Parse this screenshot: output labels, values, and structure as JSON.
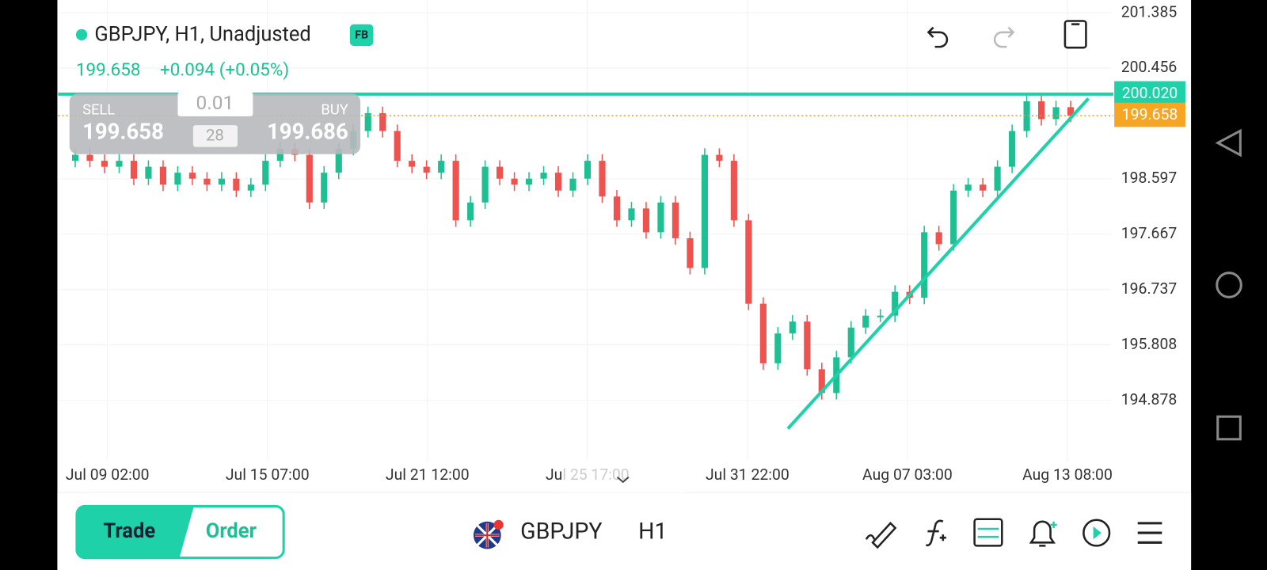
{
  "header": {
    "symbol_line": "GBPJPY, H1, Unadjusted",
    "badge": "FB",
    "price": "199.658",
    "change": "+0.094 (+0.05%)"
  },
  "trade_panel": {
    "sell_label": "SELL",
    "sell_price": "199.658",
    "lot": "0.01",
    "spread": "28",
    "buy_label": "BUY",
    "buy_price": "199.686"
  },
  "chart": {
    "type": "candlestick",
    "ylim": [
      193.33,
      201.6
    ],
    "yticks": [
      201.385,
      200.456,
      198.597,
      197.667,
      196.737,
      195.808,
      194.878
    ],
    "time_labels": [
      "Jul 09 02:00",
      "Jul 15 07:00",
      "Jul 21 12:00",
      "Jul 25 17:00",
      "Jul 31 22:00",
      "Aug 07 03:00",
      "Aug 13 08:00"
    ],
    "up_color": "#1fbf94",
    "down_color": "#ef5350",
    "closes": [
      198.9,
      199.0,
      198.9,
      198.8,
      198.9,
      198.6,
      198.8,
      198.5,
      198.7,
      198.6,
      198.5,
      198.6,
      198.4,
      198.5,
      198.9,
      199.1,
      199.0,
      198.2,
      198.7,
      199.1,
      199.4,
      199.7,
      199.4,
      198.9,
      198.8,
      198.7,
      198.9,
      197.9,
      198.2,
      198.8,
      198.6,
      198.5,
      198.6,
      198.7,
      198.4,
      198.6,
      198.9,
      198.3,
      197.9,
      198.1,
      197.7,
      198.2,
      197.6,
      197.1,
      199.0,
      198.9,
      197.9,
      196.5,
      195.5,
      196.0,
      196.2,
      195.4,
      195.0,
      195.6,
      196.1,
      196.3,
      196.3,
      196.7,
      196.6,
      197.7,
      197.5,
      198.4,
      198.5,
      198.4,
      198.8,
      199.4,
      199.9,
      199.6,
      199.8,
      199.658
    ],
    "resistance": {
      "value": 200.02,
      "label": "200.020"
    },
    "current": {
      "value": 199.658,
      "label": "199.658"
    }
  },
  "bottom_bar": {
    "trade": "Trade",
    "order": "Order",
    "symbol": "GBPJPY",
    "timeframe": "H1"
  }
}
